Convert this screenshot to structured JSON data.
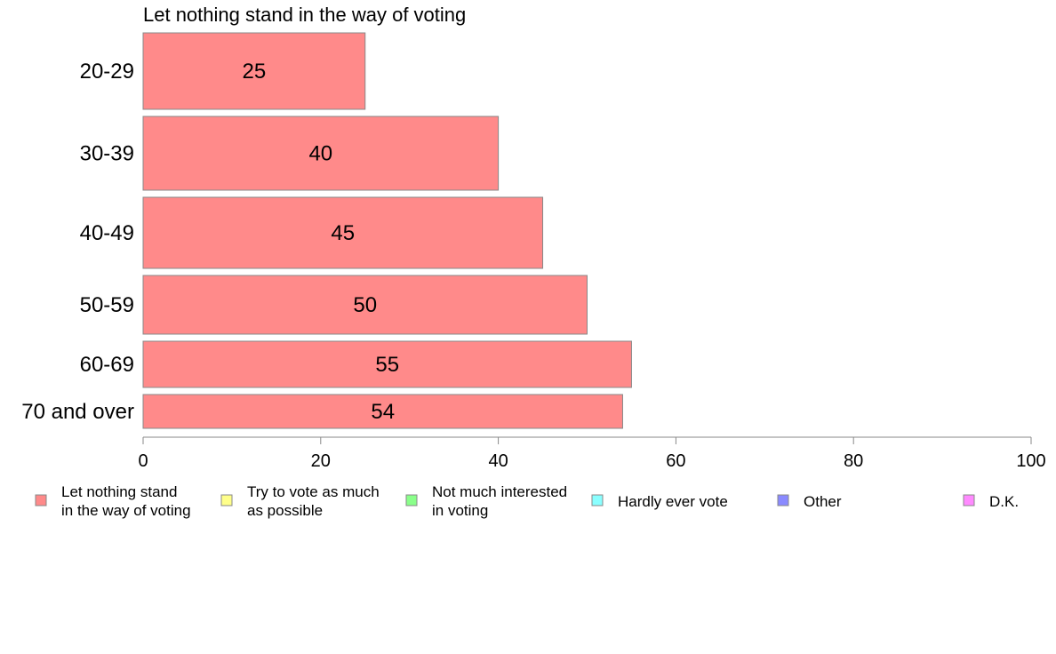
{
  "chart_data": {
    "type": "bar",
    "orientation": "horizontal",
    "title": "Let nothing stand in the way of voting",
    "categories": [
      "20-29",
      "30-39",
      "40-49",
      "50-59",
      "60-69",
      "70 and over"
    ],
    "values": [
      25,
      40,
      45,
      50,
      55,
      54
    ],
    "data_labels": [
      "25",
      "40",
      "45",
      "50",
      "55",
      "54"
    ],
    "xlim": [
      0,
      100
    ],
    "xticks": [
      0,
      20,
      40,
      60,
      80,
      100
    ],
    "xtick_labels": [
      "0",
      "20",
      "40",
      "60",
      "80",
      "100"
    ],
    "grid": false,
    "legend_position": "bottom",
    "bar_color": "#ff8a8a",
    "legend": [
      {
        "lines": [
          "Let nothing stand",
          "in the way of voting"
        ],
        "color": "#ff8a8a"
      },
      {
        "lines": [
          "Try to vote as much",
          "as possible"
        ],
        "color": "#ffff8a"
      },
      {
        "lines": [
          "Not much interested",
          "in voting"
        ],
        "color": "#8aff8a"
      },
      {
        "lines": [
          "Hardly ever vote"
        ],
        "color": "#8affff"
      },
      {
        "lines": [
          "Other"
        ],
        "color": "#8a8aff"
      },
      {
        "lines": [
          "D.K."
        ],
        "color": "#ff8aff"
      }
    ]
  }
}
